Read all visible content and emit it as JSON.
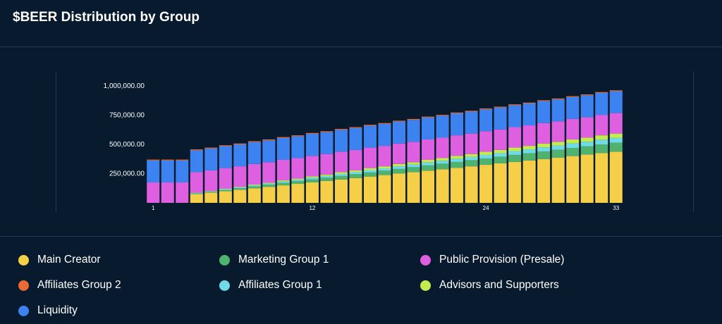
{
  "page": {
    "title": "$BEER Distribution by Group"
  },
  "chart_data": {
    "type": "bar",
    "stacked": true,
    "title": "$BEER Distribution by Group",
    "xlabel": "",
    "ylabel": "",
    "ylim": [
      0,
      1000000
    ],
    "y_ticks": [
      250000,
      500000,
      750000,
      1000000
    ],
    "y_tick_labels": [
      "250,000.00",
      "500,000.00",
      "750,000.00",
      "1,000,000.00"
    ],
    "x_tick_labels": [
      {
        "category": "1",
        "label": "1"
      },
      {
        "category": "12",
        "label": "12"
      },
      {
        "category": "24",
        "label": "24"
      },
      {
        "category": "33",
        "label": "33"
      }
    ],
    "grid": false,
    "legend_position": "bottom",
    "categories": [
      "1",
      "2",
      "3",
      "4",
      "5",
      "6",
      "7",
      "8",
      "9",
      "10",
      "11",
      "12",
      "13",
      "14",
      "15",
      "16",
      "17",
      "18",
      "19",
      "20",
      "21",
      "22",
      "23",
      "24",
      "25",
      "26",
      "27",
      "28",
      "29",
      "30",
      "31",
      "32",
      "33"
    ],
    "series": [
      {
        "name": "Main Creator",
        "color": "#f5cf48",
        "values": [
          0,
          0,
          0,
          75000,
          87500,
          100000,
          112500,
          125000,
          137500,
          150000,
          162500,
          175000,
          187500,
          200000,
          212500,
          225000,
          237500,
          250000,
          262500,
          275000,
          287500,
          300000,
          312500,
          325000,
          337500,
          350000,
          362500,
          375000,
          387500,
          400000,
          412500,
          425000,
          437500
        ]
      },
      {
        "name": "Marketing Group 1",
        "color": "#4fb26f",
        "values": [
          0,
          0,
          0,
          5000,
          7500,
          10000,
          12500,
          15000,
          17500,
          20000,
          22500,
          25000,
          27500,
          30000,
          32500,
          35000,
          37500,
          40000,
          42500,
          45000,
          47500,
          50000,
          52500,
          55000,
          57500,
          60000,
          62500,
          65000,
          67500,
          70000,
          72500,
          75000,
          77500
        ]
      },
      {
        "name": "Affiliates Group 1",
        "color": "#6fdbe8",
        "values": [
          0,
          0,
          0,
          5000,
          5000,
          7500,
          7500,
          10000,
          10000,
          12500,
          12500,
          15000,
          15000,
          17500,
          17500,
          20000,
          20000,
          22500,
          22500,
          25000,
          25000,
          27500,
          27500,
          30000,
          30000,
          32500,
          32500,
          35000,
          35000,
          37500,
          37500,
          40000,
          40000
        ]
      },
      {
        "name": "Advisors and Supporters",
        "color": "#c3ea4f",
        "values": [
          0,
          0,
          0,
          2500,
          2500,
          5000,
          5000,
          7500,
          7500,
          10000,
          10000,
          12500,
          12500,
          15000,
          15000,
          17500,
          17500,
          20000,
          20000,
          22500,
          22500,
          25000,
          25000,
          27500,
          27500,
          30000,
          30000,
          32500,
          32500,
          35000,
          35000,
          37500,
          37500
        ]
      },
      {
        "name": "Public Provision (Presale)",
        "color": "#de5fdf",
        "values": [
          175000,
          175000,
          175000,
          175000,
          175000,
          175000,
          175000,
          175000,
          175000,
          175000,
          175000,
          175000,
          175000,
          175000,
          175000,
          175000,
          175000,
          175000,
          175000,
          175000,
          175000,
          175000,
          175000,
          175000,
          175000,
          175000,
          175000,
          175000,
          175000,
          175000,
          175000,
          175000,
          175000
        ]
      },
      {
        "name": "Liquidity",
        "color": "#3c82f0",
        "values": [
          187500,
          187500,
          187500,
          187500,
          187500,
          187500,
          187500,
          187500,
          187500,
          187500,
          187500,
          187500,
          187500,
          187500,
          187500,
          187500,
          187500,
          187500,
          187500,
          187500,
          187500,
          187500,
          187500,
          187500,
          187500,
          187500,
          187500,
          187500,
          187500,
          187500,
          187500,
          187500,
          187500
        ]
      },
      {
        "name": "Affiliates Group 2",
        "color": "#ea6b31",
        "values": [
          7500,
          7500,
          7500,
          7500,
          7500,
          7500,
          7500,
          7500,
          7500,
          7500,
          7500,
          7500,
          7500,
          7500,
          7500,
          7500,
          7500,
          7500,
          7500,
          7500,
          7500,
          7500,
          7500,
          7500,
          7500,
          7500,
          7500,
          7500,
          7500,
          7500,
          7500,
          7500,
          7500
        ]
      }
    ]
  },
  "legend": [
    {
      "label": "Main Creator",
      "color": "#f5cf48"
    },
    {
      "label": "Marketing Group 1",
      "color": "#4fb26f"
    },
    {
      "label": "Public Provision (Presale)",
      "color": "#de5fdf"
    },
    {
      "label": "Affiliates Group 2",
      "color": "#ea6b31"
    },
    {
      "label": "Affiliates Group 1",
      "color": "#6fdbe8"
    },
    {
      "label": "Advisors and Supporters",
      "color": "#c3ea4f"
    },
    {
      "label": "Liquidity",
      "color": "#3c82f0"
    }
  ]
}
